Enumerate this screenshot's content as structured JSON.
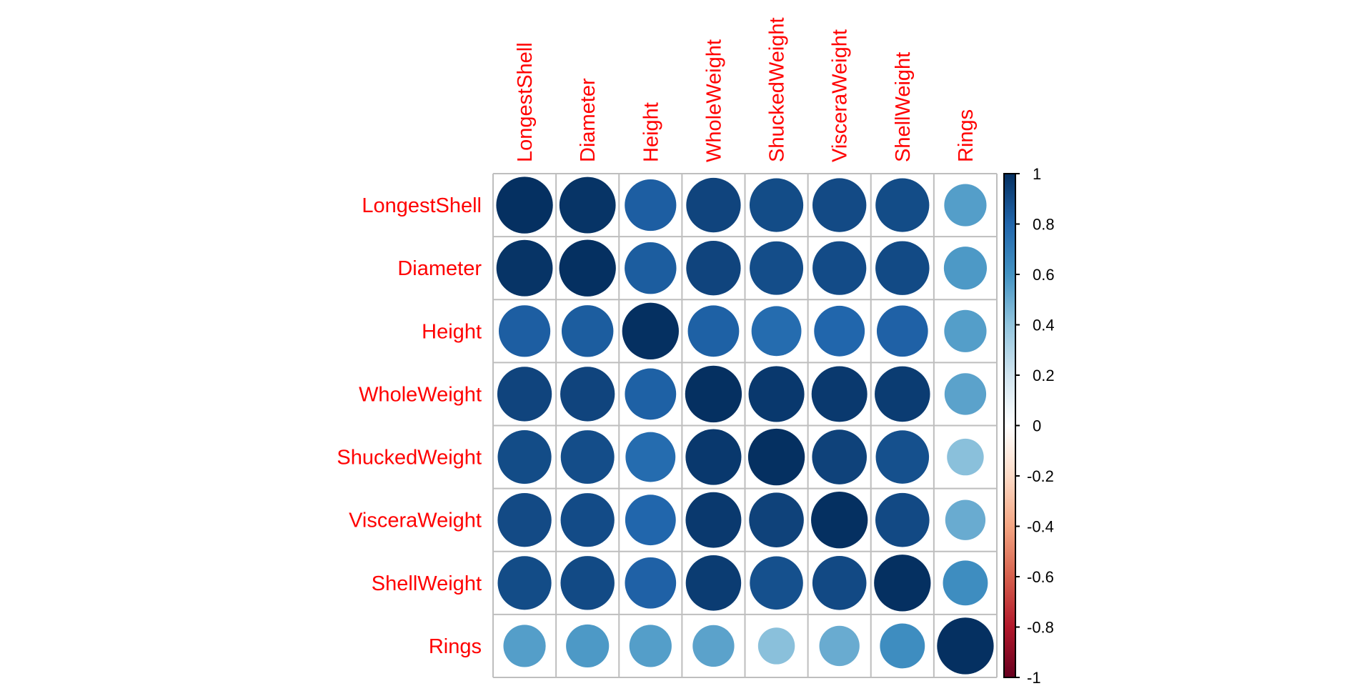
{
  "chart_data": {
    "type": "heatmap",
    "style": "corrplot-circle",
    "title": "",
    "variables": [
      "LongestShell",
      "Diameter",
      "Height",
      "WholeWeight",
      "ShuckedWeight",
      "VisceraWeight",
      "ShellWeight",
      "Rings"
    ],
    "matrix": [
      [
        1.0,
        0.987,
        0.828,
        0.925,
        0.898,
        0.903,
        0.898,
        0.557
      ],
      [
        0.987,
        1.0,
        0.834,
        0.925,
        0.893,
        0.9,
        0.905,
        0.575
      ],
      [
        0.828,
        0.834,
        1.0,
        0.819,
        0.775,
        0.798,
        0.817,
        0.557
      ],
      [
        0.925,
        0.925,
        0.819,
        1.0,
        0.969,
        0.966,
        0.955,
        0.54
      ],
      [
        0.898,
        0.893,
        0.775,
        0.969,
        1.0,
        0.932,
        0.883,
        0.421
      ],
      [
        0.903,
        0.9,
        0.798,
        0.966,
        0.932,
        1.0,
        0.908,
        0.504
      ],
      [
        0.898,
        0.905,
        0.817,
        0.955,
        0.883,
        0.908,
        1.0,
        0.628
      ],
      [
        0.557,
        0.575,
        0.557,
        0.54,
        0.421,
        0.504,
        0.628,
        1.0
      ]
    ],
    "colorbar": {
      "range": [
        -1,
        1
      ],
      "ticks": [
        "1",
        "0.8",
        "0.6",
        "0.4",
        "0.2",
        "0",
        "-0.2",
        "-0.4",
        "-0.6",
        "-0.8",
        "-1"
      ],
      "tick_values": [
        1,
        0.8,
        0.6,
        0.4,
        0.2,
        0,
        -0.2,
        -0.4,
        -0.6,
        -0.8,
        -1
      ],
      "placement": "right"
    },
    "colors": {
      "label": "#ff0000",
      "grid": "#bebebe",
      "palette": [
        "#67001f",
        "#b2182b",
        "#d6604d",
        "#f4a582",
        "#fddbc7",
        "#ffffff",
        "#d1e5f0",
        "#92c5de",
        "#4393c3",
        "#2166ac",
        "#053061"
      ]
    },
    "grid": true,
    "legend": "colorbar-right"
  }
}
